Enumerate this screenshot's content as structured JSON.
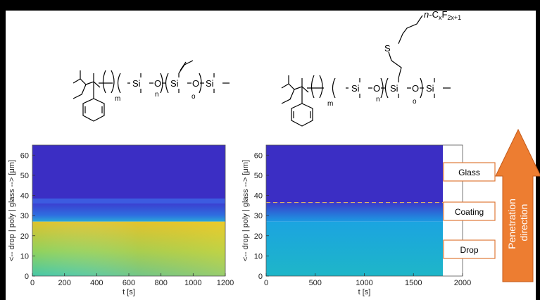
{
  "chem": {
    "left": {
      "si": [
        "Si",
        "Si",
        "Si"
      ],
      "o": [
        "O",
        "O"
      ],
      "subs": [
        "m",
        "n",
        "o"
      ]
    },
    "right": {
      "si": [
        "Si",
        "Si",
        "Si"
      ],
      "o": [
        "O",
        "O"
      ],
      "subs": [
        "m",
        "n",
        "o"
      ],
      "sulfur": "S",
      "chain_prefix": "n",
      "chain_c": "-C",
      "chain_x": "x",
      "chain_f": "F",
      "chain_sub": "2x+1"
    }
  },
  "chart_data": [
    {
      "type": "heatmap",
      "title": "",
      "xlabel": "t [s]",
      "ylabel": "<-- drop | poly | glass --> [μm]",
      "xlim": [
        0,
        1200
      ],
      "ylim": [
        0,
        65
      ],
      "xticks": [
        0,
        200,
        400,
        600,
        800,
        1000,
        1200
      ],
      "yticks": [
        0,
        10,
        20,
        30,
        40,
        50,
        60
      ],
      "bands": [
        {
          "from": 0,
          "to": 27,
          "value": "drop"
        },
        {
          "from": 27,
          "to": 36,
          "value": "poly"
        },
        {
          "from": 36,
          "to": 65,
          "value": "glass"
        }
      ]
    },
    {
      "type": "heatmap",
      "title": "",
      "xlabel": "t [s]",
      "ylabel": "<-- drop | poly | glass --> [μm]",
      "xlim": [
        0,
        2000
      ],
      "ylim": [
        0,
        65
      ],
      "data_xmax": 1800,
      "xticks": [
        0,
        500,
        1000,
        1500,
        2000
      ],
      "yticks": [
        0,
        10,
        20,
        30,
        40,
        50,
        60
      ],
      "interface_line": 36.5,
      "bands": [
        {
          "from": 0,
          "to": 27,
          "value": "drop"
        },
        {
          "from": 27,
          "to": 36.5,
          "value": "coating"
        },
        {
          "from": 36.5,
          "to": 65,
          "value": "glass"
        }
      ]
    }
  ],
  "legend": {
    "glass": "Glass",
    "coating": "Coating",
    "drop": "Drop"
  },
  "arrow": {
    "line1": "Penetration",
    "line2": "direction",
    "color": "#ED7D31"
  },
  "colors": {
    "glass_blue": "#3B2EC4",
    "poly_blue": "#2F5BE6",
    "drop_left_top": "#E7C326",
    "drop_left_bottom": "#3FC0B0",
    "drop_right": "#1CAFD6"
  }
}
